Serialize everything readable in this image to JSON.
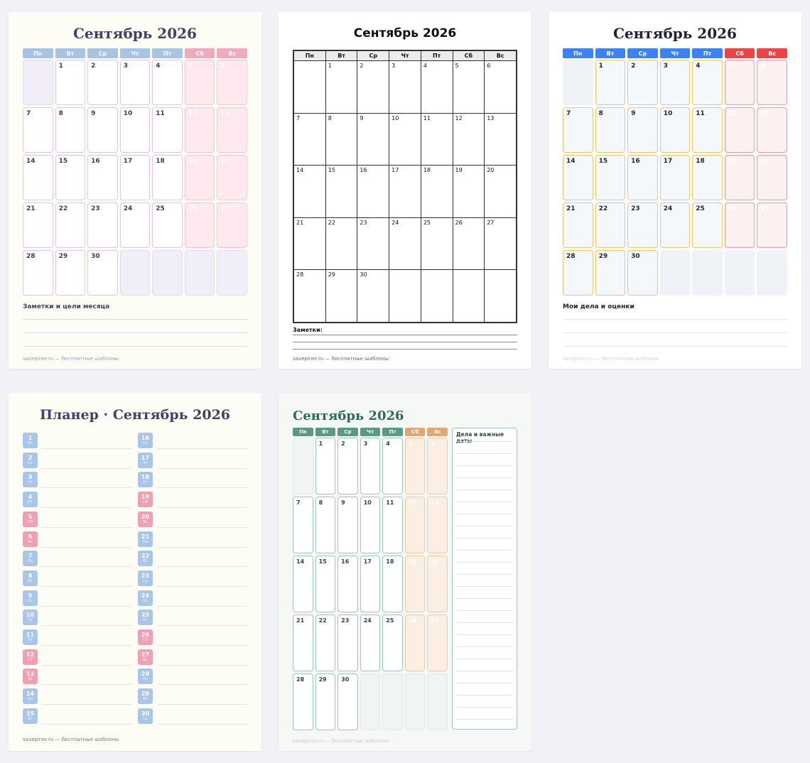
{
  "weekdays": [
    "Пн",
    "Вт",
    "Ср",
    "Чт",
    "Пт",
    "Сб",
    "Вс"
  ],
  "month_title": "Сентябрь 2026",
  "leading_blanks": 1,
  "days_in_month": 30,
  "footer": "savepiner.ru — бесплатные шаблоны",
  "card1": {
    "title": "Сентябрь 2026",
    "notes_label": "Заметки и цели месяца"
  },
  "card2": {
    "title": "Сентябрь 2026",
    "notes_label": "Заметки:"
  },
  "card3": {
    "title": "Сентябрь 2026",
    "notes_label": "Мои дела и оценки"
  },
  "card4": {
    "title": "Планер · Сентябрь 2026",
    "days": [
      {
        "d": "1",
        "w": "Вт"
      },
      {
        "d": "2",
        "w": "Ср"
      },
      {
        "d": "3",
        "w": "Чт"
      },
      {
        "d": "4",
        "w": "Пт"
      },
      {
        "d": "5",
        "w": "Сб"
      },
      {
        "d": "6",
        "w": "Вс"
      },
      {
        "d": "7",
        "w": "Пн"
      },
      {
        "d": "8",
        "w": "Вт"
      },
      {
        "d": "9",
        "w": "Ср"
      },
      {
        "d": "10",
        "w": "Чт"
      },
      {
        "d": "11",
        "w": "Пт"
      },
      {
        "d": "12",
        "w": "Сб"
      },
      {
        "d": "13",
        "w": "Вс"
      },
      {
        "d": "14",
        "w": "Пн"
      },
      {
        "d": "15",
        "w": "Вт"
      },
      {
        "d": "16",
        "w": "Ср"
      },
      {
        "d": "17",
        "w": "Чт"
      },
      {
        "d": "18",
        "w": "Пт"
      },
      {
        "d": "19",
        "w": "Сб"
      },
      {
        "d": "20",
        "w": "Вс"
      },
      {
        "d": "21",
        "w": "Пн"
      },
      {
        "d": "22",
        "w": "Вт"
      },
      {
        "d": "23",
        "w": "Ср"
      },
      {
        "d": "24",
        "w": "Чт"
      },
      {
        "d": "25",
        "w": "Пт"
      },
      {
        "d": "26",
        "w": "Сб"
      },
      {
        "d": "27",
        "w": "Вс"
      },
      {
        "d": "28",
        "w": "Пн"
      },
      {
        "d": "29",
        "w": "Вт"
      },
      {
        "d": "30",
        "w": "Ср"
      }
    ]
  },
  "card5": {
    "title": "Сентябрь 2026",
    "side_label": "Дела и важные даты"
  },
  "colors": {
    "c1_head": "#a6c4e6",
    "c1_weekend_head": "#f0a9bd",
    "c1_title": "#44406a",
    "c3_head": "#3b82f6",
    "c3_weekend_head": "#ef4444",
    "c4_weekday": "#a9c6e8",
    "c4_weekend": "#f0a0b4",
    "c5_head": "#5a9a82",
    "c5_weekend_head": "#e0a874",
    "c5_title": "#2e6b54"
  }
}
